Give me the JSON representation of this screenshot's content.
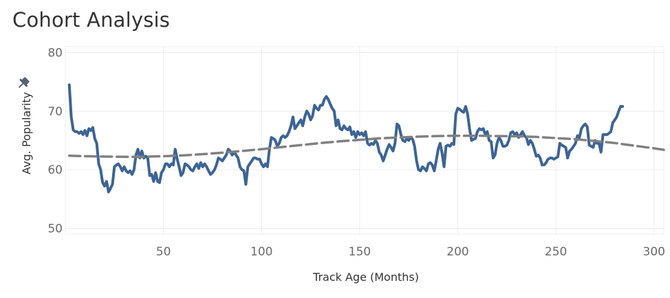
{
  "header": {
    "title": "Cohort Analysis"
  },
  "chart_data": {
    "type": "line",
    "xlabel": "Track Age (Months)",
    "ylabel": "Avg. Popularity",
    "xlim": [
      0,
      305
    ],
    "ylim": [
      49,
      81
    ],
    "xticks": [
      50,
      100,
      150,
      200,
      250,
      300
    ],
    "yticks": [
      50,
      60,
      70,
      80
    ],
    "grid": true,
    "colors": {
      "series": "#3c6496",
      "trend": "#808080",
      "grid": "#ececec",
      "pin": "#5a6270"
    },
    "ylabel_icon": "pin-icon",
    "series": [
      {
        "style": "solid",
        "points": [
          [
            2,
            74.5
          ],
          [
            3,
            69
          ],
          [
            4,
            66.8
          ],
          [
            5,
            66.5
          ],
          [
            6,
            66.5
          ],
          [
            7,
            66.2
          ],
          [
            8,
            66.5
          ],
          [
            9,
            66
          ],
          [
            10,
            66.7
          ],
          [
            11,
            65.8
          ],
          [
            12,
            67
          ],
          [
            13,
            66.7
          ],
          [
            14,
            67.2
          ],
          [
            15,
            65.3
          ],
          [
            16,
            64.5
          ],
          [
            17,
            61
          ],
          [
            18,
            60
          ],
          [
            19,
            57.8
          ],
          [
            20,
            57.2
          ],
          [
            21,
            58
          ],
          [
            22,
            56.2
          ],
          [
            23,
            56.8
          ],
          [
            24,
            57.5
          ],
          [
            25,
            60.5
          ],
          [
            26,
            60.8
          ],
          [
            27,
            61
          ],
          [
            28,
            60.5
          ],
          [
            29,
            59.8
          ],
          [
            30,
            60.5
          ],
          [
            31,
            59.8
          ],
          [
            32,
            59.5
          ],
          [
            33,
            59.8
          ],
          [
            34,
            59.2
          ],
          [
            35,
            60
          ],
          [
            36,
            62.5
          ],
          [
            37,
            63.5
          ],
          [
            38,
            62
          ],
          [
            39,
            63.2
          ],
          [
            40,
            62
          ],
          [
            41,
            62.3
          ],
          [
            42,
            62
          ],
          [
            43,
            59
          ],
          [
            44,
            59.2
          ],
          [
            45,
            58
          ],
          [
            46,
            59.5
          ],
          [
            47,
            58
          ],
          [
            48,
            57.8
          ],
          [
            49,
            59.5
          ],
          [
            50,
            60
          ],
          [
            51,
            61
          ],
          [
            52,
            61
          ],
          [
            53,
            60.5
          ],
          [
            54,
            61
          ],
          [
            55,
            60.8
          ],
          [
            56,
            63.5
          ],
          [
            57,
            61.8
          ],
          [
            58,
            60.5
          ],
          [
            59,
            59
          ],
          [
            60,
            59.5
          ],
          [
            61,
            61
          ],
          [
            62,
            60.8
          ],
          [
            63,
            60.5
          ],
          [
            64,
            60
          ],
          [
            65,
            59.8
          ],
          [
            66,
            60.5
          ],
          [
            67,
            61
          ],
          [
            68,
            60.2
          ],
          [
            69,
            61.2
          ],
          [
            70,
            60.5
          ],
          [
            71,
            61
          ],
          [
            72,
            60.5
          ],
          [
            73,
            59.8
          ],
          [
            74,
            59.2
          ],
          [
            75,
            59.5
          ],
          [
            76,
            60
          ],
          [
            77,
            60.8
          ],
          [
            78,
            62
          ],
          [
            79,
            61.8
          ],
          [
            80,
            61.5
          ],
          [
            81,
            62
          ],
          [
            82,
            62.5
          ],
          [
            83,
            63.5
          ],
          [
            84,
            63.2
          ],
          [
            85,
            62.5
          ],
          [
            86,
            63
          ],
          [
            87,
            62.5
          ],
          [
            88,
            62
          ],
          [
            89,
            60.5
          ],
          [
            90,
            60
          ],
          [
            91,
            59.8
          ],
          [
            92,
            57.5
          ],
          [
            93,
            60.5
          ],
          [
            94,
            61
          ],
          [
            95,
            61.5
          ],
          [
            96,
            62
          ],
          [
            97,
            62
          ],
          [
            98,
            61.8
          ],
          [
            99,
            61.8
          ],
          [
            100,
            61
          ],
          [
            101,
            60.5
          ],
          [
            102,
            61
          ],
          [
            103,
            60.5
          ],
          [
            104,
            63.5
          ],
          [
            105,
            65.5
          ],
          [
            106,
            65.3
          ],
          [
            107,
            65
          ],
          [
            108,
            64
          ],
          [
            109,
            64.5
          ],
          [
            110,
            65.5
          ],
          [
            111,
            65.8
          ],
          [
            112,
            65.5
          ],
          [
            113,
            65.8
          ],
          [
            114,
            66.5
          ],
          [
            115,
            67.5
          ],
          [
            116,
            69
          ],
          [
            117,
            67
          ],
          [
            118,
            67.5
          ],
          [
            119,
            68
          ],
          [
            120,
            68.5
          ],
          [
            121,
            67.5
          ],
          [
            122,
            69
          ],
          [
            123,
            70
          ],
          [
            124,
            69.5
          ],
          [
            125,
            68.5
          ],
          [
            126,
            69.2
          ],
          [
            127,
            71
          ],
          [
            128,
            70.5
          ],
          [
            129,
            70.2
          ],
          [
            130,
            71
          ],
          [
            131,
            71
          ],
          [
            132,
            72
          ],
          [
            133,
            72.5
          ],
          [
            134,
            72
          ],
          [
            135,
            71.2
          ],
          [
            136,
            70.5
          ],
          [
            137,
            70
          ],
          [
            138,
            67.5
          ],
          [
            139,
            68.5
          ],
          [
            140,
            67
          ],
          [
            141,
            66.8
          ],
          [
            142,
            67.5
          ],
          [
            143,
            67
          ],
          [
            144,
            66.8
          ],
          [
            145,
            67.3
          ],
          [
            146,
            66
          ],
          [
            147,
            66.5
          ],
          [
            148,
            65.5
          ],
          [
            149,
            66.5
          ],
          [
            150,
            66
          ],
          [
            151,
            66.3
          ],
          [
            152,
            65.8
          ],
          [
            153,
            66.5
          ],
          [
            154,
            64.5
          ],
          [
            155,
            64.2
          ],
          [
            156,
            64.5
          ],
          [
            157,
            64.3
          ],
          [
            158,
            65
          ],
          [
            159,
            64.5
          ],
          [
            160,
            63
          ],
          [
            161,
            62.5
          ],
          [
            162,
            61.5
          ],
          [
            163,
            62.5
          ],
          [
            164,
            63.5
          ],
          [
            165,
            64.3
          ],
          [
            166,
            63.8
          ],
          [
            167,
            63.2
          ],
          [
            168,
            64.5
          ],
          [
            169,
            67.8
          ],
          [
            170,
            67.5
          ],
          [
            171,
            66
          ],
          [
            172,
            65
          ],
          [
            173,
            64.8
          ],
          [
            174,
            65.3
          ],
          [
            175,
            65
          ],
          [
            176,
            65.5
          ],
          [
            177,
            65.2
          ],
          [
            178,
            64
          ],
          [
            179,
            61.5
          ],
          [
            180,
            60
          ],
          [
            181,
            59.8
          ],
          [
            182,
            60.5
          ],
          [
            183,
            60.2
          ],
          [
            184,
            59.8
          ],
          [
            185,
            61
          ],
          [
            186,
            61.2
          ],
          [
            187,
            60.8
          ],
          [
            188,
            59.8
          ],
          [
            189,
            61.5
          ],
          [
            190,
            63.5
          ],
          [
            191,
            64.5
          ],
          [
            192,
            62.8
          ],
          [
            193,
            60.5
          ],
          [
            194,
            64
          ],
          [
            195,
            64.2
          ],
          [
            196,
            64
          ],
          [
            197,
            64.5
          ],
          [
            198,
            64.3
          ],
          [
            199,
            69.5
          ],
          [
            200,
            70.5
          ],
          [
            201,
            70.3
          ],
          [
            202,
            70
          ],
          [
            203,
            69.8
          ],
          [
            204,
            70.8
          ],
          [
            205,
            69.5
          ],
          [
            206,
            67
          ],
          [
            207,
            65
          ],
          [
            208,
            65.2
          ],
          [
            209,
            65.3
          ],
          [
            210,
            66.5
          ],
          [
            211,
            67
          ],
          [
            212,
            66.8
          ],
          [
            213,
            67
          ],
          [
            214,
            66
          ],
          [
            215,
            66.5
          ],
          [
            216,
            65
          ],
          [
            217,
            64.8
          ],
          [
            218,
            62
          ],
          [
            219,
            62.5
          ],
          [
            220,
            64.5
          ],
          [
            221,
            65.5
          ],
          [
            222,
            65
          ],
          [
            223,
            64
          ],
          [
            224,
            64
          ],
          [
            225,
            64.2
          ],
          [
            226,
            65
          ],
          [
            227,
            66.3
          ],
          [
            228,
            66.5
          ],
          [
            229,
            66
          ],
          [
            230,
            66.3
          ],
          [
            231,
            65.5
          ],
          [
            232,
            66
          ],
          [
            233,
            66.5
          ],
          [
            234,
            65.8
          ],
          [
            235,
            65.5
          ],
          [
            236,
            64.3
          ],
          [
            237,
            65
          ],
          [
            238,
            64.5
          ],
          [
            239,
            63.5
          ],
          [
            240,
            62.3
          ],
          [
            241,
            62.5
          ],
          [
            242,
            62
          ],
          [
            243,
            60.8
          ],
          [
            244,
            60.8
          ],
          [
            245,
            61.2
          ],
          [
            246,
            61.8
          ],
          [
            247,
            62
          ],
          [
            248,
            62
          ],
          [
            249,
            61.8
          ],
          [
            250,
            62
          ],
          [
            251,
            62.2
          ],
          [
            252,
            64.5
          ],
          [
            253,
            64.2
          ],
          [
            254,
            64
          ],
          [
            255,
            63.8
          ],
          [
            256,
            62
          ],
          [
            257,
            63.2
          ],
          [
            258,
            63.5
          ],
          [
            259,
            64
          ],
          [
            260,
            64.5
          ],
          [
            261,
            65.8
          ],
          [
            262,
            65.5
          ],
          [
            263,
            67
          ],
          [
            264,
            67.5
          ],
          [
            265,
            67.8
          ],
          [
            266,
            67.3
          ],
          [
            267,
            64.2
          ],
          [
            268,
            64
          ],
          [
            269,
            63.8
          ],
          [
            270,
            65
          ],
          [
            271,
            64.5
          ],
          [
            272,
            64.5
          ],
          [
            273,
            63
          ],
          [
            274,
            66
          ],
          [
            275,
            66
          ],
          [
            276,
            66
          ],
          [
            277,
            66.2
          ],
          [
            278,
            66.5
          ],
          [
            279,
            68
          ],
          [
            280,
            68.5
          ],
          [
            281,
            69
          ],
          [
            282,
            70
          ],
          [
            283,
            70.8
          ],
          [
            284,
            70.8
          ]
        ]
      },
      {
        "style": "dashed",
        "points": [
          [
            2,
            62.4
          ],
          [
            10,
            62.3
          ],
          [
            20,
            62.25
          ],
          [
            30,
            62.2
          ],
          [
            40,
            62.22
          ],
          [
            50,
            62.3
          ],
          [
            60,
            62.45
          ],
          [
            70,
            62.65
          ],
          [
            80,
            62.9
          ],
          [
            90,
            63.2
          ],
          [
            100,
            63.5
          ],
          [
            110,
            63.85
          ],
          [
            120,
            64.2
          ],
          [
            130,
            64.55
          ],
          [
            140,
            64.85
          ],
          [
            150,
            65.1
          ],
          [
            160,
            65.35
          ],
          [
            170,
            65.5
          ],
          [
            180,
            65.65
          ],
          [
            190,
            65.75
          ],
          [
            200,
            65.8
          ],
          [
            210,
            65.8
          ],
          [
            220,
            65.75
          ],
          [
            230,
            65.7
          ],
          [
            240,
            65.6
          ],
          [
            250,
            65.4
          ],
          [
            260,
            65.2
          ],
          [
            270,
            64.9
          ],
          [
            280,
            64.55
          ],
          [
            290,
            64.1
          ],
          [
            300,
            63.65
          ],
          [
            305,
            63.4
          ]
        ]
      }
    ]
  }
}
